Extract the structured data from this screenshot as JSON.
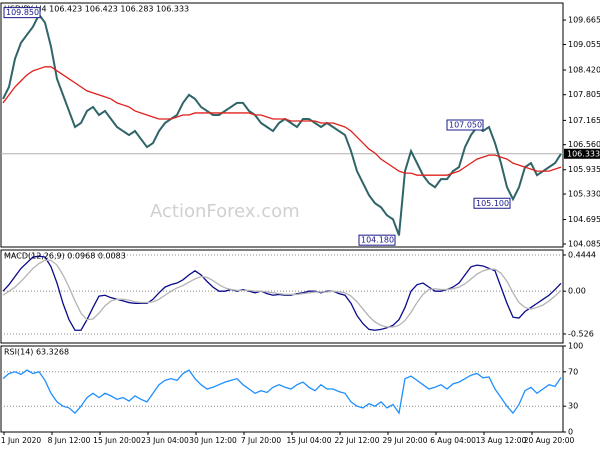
{
  "chart_data": [
    {
      "type": "line",
      "title": "USDJPY,H4  106.423 106.423 106.283 106.333",
      "watermark": "ActionForex.com",
      "ylim": [
        104.01,
        110.09
      ],
      "yticks": [
        109.665,
        109.055,
        {
          "value": 108.42,
          "label": "108.420"
        },
        107.805,
        107.165,
        {
          "value": 106.56,
          "label": "106.560"
        },
        105.935,
        {
          "value": 105.33,
          "label": "105.330"
        },
        104.695,
        104.085
      ],
      "last_price": 106.333,
      "annotations": [
        {
          "value": 109.85,
          "label": "109.850"
        },
        {
          "value": 107.05,
          "label": "107.050"
        },
        {
          "value": 104.18,
          "label": "104.180"
        },
        {
          "value": 105.1,
          "label": "105.100"
        }
      ],
      "series": [
        {
          "color": "#2f6468",
          "values": [
            107.7,
            108.0,
            108.7,
            109.1,
            109.3,
            109.5,
            109.8,
            109.6,
            109.0,
            108.2,
            107.8,
            107.4,
            107.0,
            107.1,
            107.4,
            107.5,
            107.3,
            107.4,
            107.2,
            107.0,
            106.9,
            106.8,
            106.9,
            106.7,
            106.5,
            106.6,
            106.9,
            107.1,
            107.2,
            107.3,
            107.6,
            107.8,
            107.7,
            107.5,
            107.4,
            107.3,
            107.3,
            107.4,
            107.5,
            107.6,
            107.6,
            107.4,
            107.3,
            107.1,
            107.0,
            106.9,
            107.1,
            107.2,
            107.1,
            107.0,
            107.2,
            107.2,
            107.1,
            107.0,
            107.1,
            107.0,
            106.9,
            106.8,
            106.4,
            105.9,
            105.6,
            105.3,
            105.1,
            105.0,
            104.8,
            104.7,
            104.3,
            105.9,
            106.4,
            106.1,
            105.8,
            105.6,
            105.5,
            105.7,
            105.7,
            105.9,
            106.0,
            106.5,
            106.8,
            107.0,
            106.9,
            107.0,
            106.6,
            106.1,
            105.5,
            105.2,
            105.5,
            106.0,
            106.1,
            105.8,
            105.9,
            106.0,
            106.1,
            106.333
          ]
        },
        {
          "color": "#e0201b",
          "values": [
            107.6,
            107.8,
            108.0,
            108.15,
            108.3,
            108.4,
            108.45,
            108.5,
            108.5,
            108.4,
            108.3,
            108.2,
            108.1,
            108.0,
            107.9,
            107.85,
            107.8,
            107.75,
            107.7,
            107.6,
            107.55,
            107.5,
            107.4,
            107.35,
            107.3,
            107.25,
            107.2,
            107.2,
            107.2,
            107.25,
            107.3,
            107.3,
            107.35,
            107.35,
            107.35,
            107.35,
            107.35,
            107.35,
            107.35,
            107.35,
            107.35,
            107.35,
            107.3,
            107.3,
            107.25,
            107.2,
            107.2,
            107.2,
            107.15,
            107.15,
            107.15,
            107.15,
            107.15,
            107.1,
            107.1,
            107.1,
            107.05,
            107.0,
            106.9,
            106.75,
            106.6,
            106.45,
            106.35,
            106.2,
            106.1,
            106.0,
            105.9,
            105.85,
            105.85,
            105.8,
            105.8,
            105.8,
            105.8,
            105.8,
            105.8,
            105.85,
            105.9,
            106.0,
            106.1,
            106.2,
            106.25,
            106.3,
            106.3,
            106.25,
            106.2,
            106.1,
            106.05,
            106.0,
            105.95,
            105.9,
            105.9,
            105.9,
            105.95,
            106.0
          ]
        }
      ]
    },
    {
      "type": "line",
      "title": "MACD(12,26,9) 0.0968 0.0083",
      "ylim": [
        -0.637,
        0.506
      ],
      "yticks": [
        0.4444,
        {
          "value": 0,
          "label": "0.00"
        },
        -0.526
      ],
      "grid": true,
      "series": [
        {
          "color": "#0a0a8c",
          "values": [
            0.0,
            0.08,
            0.18,
            0.28,
            0.35,
            0.42,
            0.43,
            0.42,
            0.3,
            0.1,
            -0.15,
            -0.35,
            -0.48,
            -0.48,
            -0.35,
            -0.2,
            -0.06,
            -0.05,
            -0.08,
            -0.1,
            -0.12,
            -0.14,
            -0.15,
            -0.15,
            -0.15,
            -0.1,
            -0.02,
            0.05,
            0.08,
            0.1,
            0.14,
            0.2,
            0.25,
            0.2,
            0.12,
            0.05,
            0.0,
            0.0,
            0.02,
            0.0,
            0.02,
            0.0,
            -0.02,
            0.0,
            -0.03,
            -0.05,
            -0.04,
            -0.05,
            -0.05,
            -0.03,
            -0.02,
            0.0,
            0.0,
            -0.02,
            0.0,
            0.0,
            -0.03,
            -0.05,
            -0.15,
            -0.3,
            -0.4,
            -0.47,
            -0.48,
            -0.47,
            -0.45,
            -0.42,
            -0.35,
            -0.2,
            0.0,
            0.08,
            0.1,
            0.05,
            0.0,
            0.0,
            0.02,
            0.05,
            0.1,
            0.2,
            0.3,
            0.32,
            0.31,
            0.28,
            0.25,
            0.05,
            -0.15,
            -0.32,
            -0.33,
            -0.25,
            -0.2,
            -0.15,
            -0.1,
            -0.05,
            0.02,
            0.0968
          ]
        },
        {
          "color": "#b4b4b4",
          "values": [
            -0.05,
            0.0,
            0.05,
            0.12,
            0.2,
            0.28,
            0.34,
            0.38,
            0.38,
            0.32,
            0.2,
            0.05,
            -0.12,
            -0.27,
            -0.35,
            -0.34,
            -0.27,
            -0.18,
            -0.12,
            -0.1,
            -0.1,
            -0.11,
            -0.13,
            -0.14,
            -0.14,
            -0.13,
            -0.1,
            -0.05,
            0.0,
            0.04,
            0.07,
            0.11,
            0.15,
            0.18,
            0.17,
            0.13,
            0.08,
            0.04,
            0.02,
            0.01,
            0.01,
            0.01,
            0.0,
            0.0,
            -0.01,
            -0.02,
            -0.03,
            -0.04,
            -0.04,
            -0.04,
            -0.03,
            -0.02,
            -0.01,
            -0.01,
            -0.01,
            0.0,
            -0.01,
            -0.02,
            -0.06,
            -0.13,
            -0.22,
            -0.31,
            -0.38,
            -0.42,
            -0.44,
            -0.44,
            -0.42,
            -0.36,
            -0.26,
            -0.14,
            -0.04,
            0.02,
            0.03,
            0.02,
            0.02,
            0.03,
            0.05,
            0.09,
            0.15,
            0.21,
            0.25,
            0.27,
            0.27,
            0.22,
            0.12,
            -0.02,
            -0.14,
            -0.2,
            -0.22,
            -0.2,
            -0.17,
            -0.12,
            -0.06,
            0.0083
          ]
        }
      ]
    },
    {
      "type": "line",
      "title": "RSI(14) 63.3268",
      "ylim": [
        0,
        100
      ],
      "yticks": [
        100,
        70,
        30,
        0
      ],
      "grid": true,
      "categories": [
        null,
        null,
        null,
        "1 Jun 2020",
        null,
        null,
        null,
        null,
        null,
        null,
        null,
        "8 Jun 12:00",
        null,
        null,
        null,
        null,
        null,
        null,
        null,
        "15 Jun 20:00",
        null,
        null,
        null,
        null,
        null,
        null,
        null,
        "23 Jun 04:00",
        null,
        null,
        null,
        null,
        null,
        null,
        null,
        "30 Jun 12:00",
        null,
        null,
        null,
        null,
        null,
        null,
        null,
        "7 Jul 20:00",
        null,
        null,
        null,
        null,
        null,
        null,
        null,
        "15 Jul 04:00",
        null,
        null,
        null,
        null,
        null,
        null,
        null,
        "22 Jul 12:00",
        null,
        null,
        null,
        null,
        null,
        null,
        null,
        "29 Jul 20:00",
        null,
        null,
        null,
        null,
        null,
        null,
        null,
        "6 Aug 04:00",
        null,
        null,
        null,
        null,
        null,
        null,
        null,
        "13 Aug 12:00",
        null,
        null,
        null,
        null,
        null,
        null,
        null,
        "20 Aug 20:00",
        null,
        null
      ],
      "series": [
        {
          "color": "#1e90ff",
          "values": [
            62,
            68,
            70,
            67,
            72,
            68,
            70,
            60,
            45,
            35,
            30,
            28,
            22,
            30,
            40,
            45,
            40,
            45,
            42,
            38,
            40,
            36,
            42,
            38,
            35,
            45,
            55,
            60,
            62,
            60,
            68,
            72,
            62,
            55,
            50,
            52,
            55,
            58,
            60,
            62,
            55,
            50,
            45,
            48,
            46,
            52,
            55,
            52,
            50,
            55,
            58,
            52,
            48,
            55,
            50,
            50,
            47,
            45,
            35,
            30,
            28,
            33,
            30,
            35,
            28,
            32,
            22,
            62,
            65,
            60,
            55,
            50,
            52,
            55,
            50,
            56,
            58,
            62,
            66,
            68,
            63,
            64,
            50,
            40,
            30,
            22,
            32,
            48,
            52,
            45,
            50,
            55,
            53,
            63.3268
          ]
        }
      ]
    }
  ]
}
